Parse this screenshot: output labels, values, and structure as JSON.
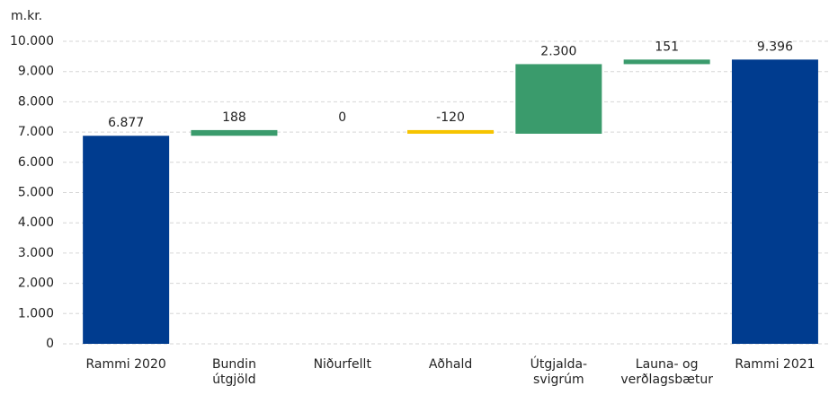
{
  "chart_data": {
    "type": "waterfall",
    "y_axis_label": "m.kr.",
    "categories": [
      "Rammi 2020",
      "Bundin\nútgjöld",
      "Niðurfellt",
      "Aðhald",
      "Útgjalda-\nsvigrúm",
      "Launa- og\nverðlagsbætur",
      "Rammi 2021"
    ],
    "values": [
      6877,
      188,
      0,
      -120,
      2300,
      151,
      9396
    ],
    "value_labels": [
      "6.877",
      "188",
      "0",
      "-120",
      "2.300",
      "151",
      "9.396"
    ],
    "totals": [
      true,
      false,
      false,
      false,
      false,
      false,
      true
    ],
    "colors": {
      "total": "#003c8f",
      "increase": "#3a9b6c",
      "decrease": "#f6c400"
    },
    "ylim": [
      0,
      10000
    ],
    "yticks": [
      0,
      {
        "value": 1000,
        "label": "1.000"
      },
      {
        "value": 2000,
        "label": "2.000"
      },
      {
        "value": 3000,
        "label": "3.000"
      },
      {
        "value": 4000,
        "label": "4.000"
      },
      {
        "value": 5000,
        "label": "5.000"
      },
      {
        "value": 6000,
        "label": "6.000"
      },
      {
        "value": 7000,
        "label": "7.000"
      },
      {
        "value": 8000,
        "label": "8.000"
      },
      {
        "value": 9000,
        "label": "9.000"
      },
      {
        "value": 10000,
        "label": "10.000"
      }
    ],
    "grid": true
  }
}
